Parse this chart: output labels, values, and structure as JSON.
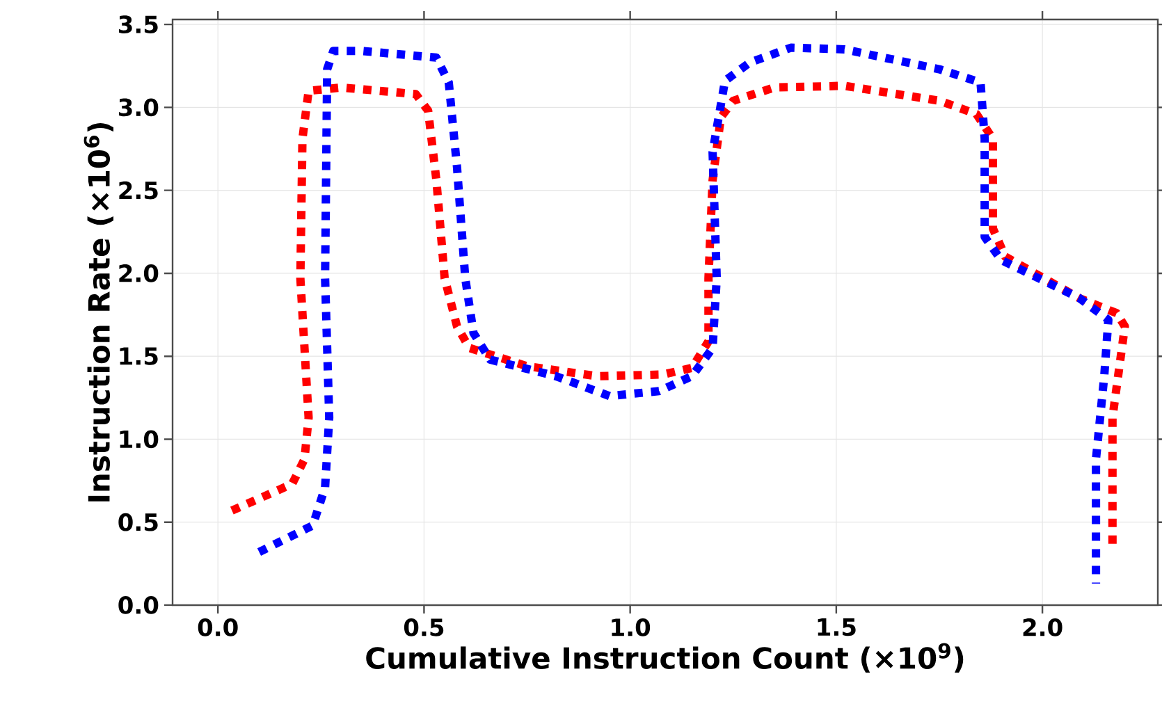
{
  "chart_data": {
    "type": "line",
    "xlabel": "Cumulative Instruction Count (×10$^{9}$)",
    "ylabel": "Instruction Rate (×10$^{6}$)",
    "xlim": [
      -0.11,
      2.28
    ],
    "ylim": [
      0,
      3.53
    ],
    "xticks": [
      {
        "value": 0,
        "label": "0.0"
      },
      0.5,
      {
        "value": 1,
        "label": "1.0"
      },
      1.5,
      {
        "value": 2,
        "label": "2.0"
      }
    ],
    "yticks": [
      {
        "value": 0,
        "label": "0.0"
      },
      0.5,
      {
        "value": 1,
        "label": "1.0"
      },
      1.5,
      {
        "value": 2,
        "label": "2.0"
      },
      2.5,
      {
        "value": 3,
        "label": "3.0"
      },
      3.5
    ],
    "grid": true,
    "line_style": "dotted",
    "series": [
      {
        "color": "#ff0000",
        "x": [
          0.034,
          0.18,
          0.21,
          0.22,
          0.2,
          0.205,
          0.22,
          0.3,
          0.48,
          0.51,
          0.53,
          0.55,
          0.58,
          0.61,
          0.75,
          0.92,
          1.08,
          1.15,
          1.19,
          1.19,
          1.2,
          1.22,
          1.25,
          1.35,
          1.52,
          1.75,
          1.84,
          1.88,
          1.88,
          1.91,
          2.09,
          2.18,
          2.2,
          2.17,
          2.17
        ],
        "values": [
          0.57,
          0.73,
          0.88,
          1.13,
          1.97,
          2.81,
          3.1,
          3.12,
          3.08,
          2.98,
          2.56,
          1.97,
          1.68,
          1.55,
          1.44,
          1.38,
          1.39,
          1.43,
          1.59,
          1.97,
          2.56,
          2.94,
          3.04,
          3.12,
          3.13,
          3.04,
          2.96,
          2.81,
          2.27,
          2.1,
          1.85,
          1.76,
          1.68,
          1.13,
          0.35
        ]
      },
      {
        "color": "#0000ff",
        "x": [
          0.1,
          0.23,
          0.26,
          0.27,
          0.26,
          0.265,
          0.28,
          0.35,
          0.53,
          0.56,
          0.58,
          0.6,
          0.62,
          0.66,
          0.82,
          0.95,
          1.07,
          1.15,
          1.2,
          1.21,
          1.2,
          1.23,
          1.29,
          1.39,
          1.52,
          1.75,
          1.85,
          1.86,
          1.86,
          1.9,
          2.09,
          2.16,
          2.15,
          2.13,
          2.13
        ],
        "values": [
          0.32,
          0.48,
          0.71,
          1.13,
          1.97,
          3.23,
          3.34,
          3.34,
          3.3,
          3.15,
          2.64,
          1.97,
          1.64,
          1.48,
          1.38,
          1.26,
          1.29,
          1.38,
          1.55,
          1.97,
          2.73,
          3.16,
          3.27,
          3.36,
          3.35,
          3.23,
          3.15,
          2.81,
          2.22,
          2.08,
          1.85,
          1.72,
          1.38,
          0.88,
          0.13
        ]
      }
    ]
  }
}
